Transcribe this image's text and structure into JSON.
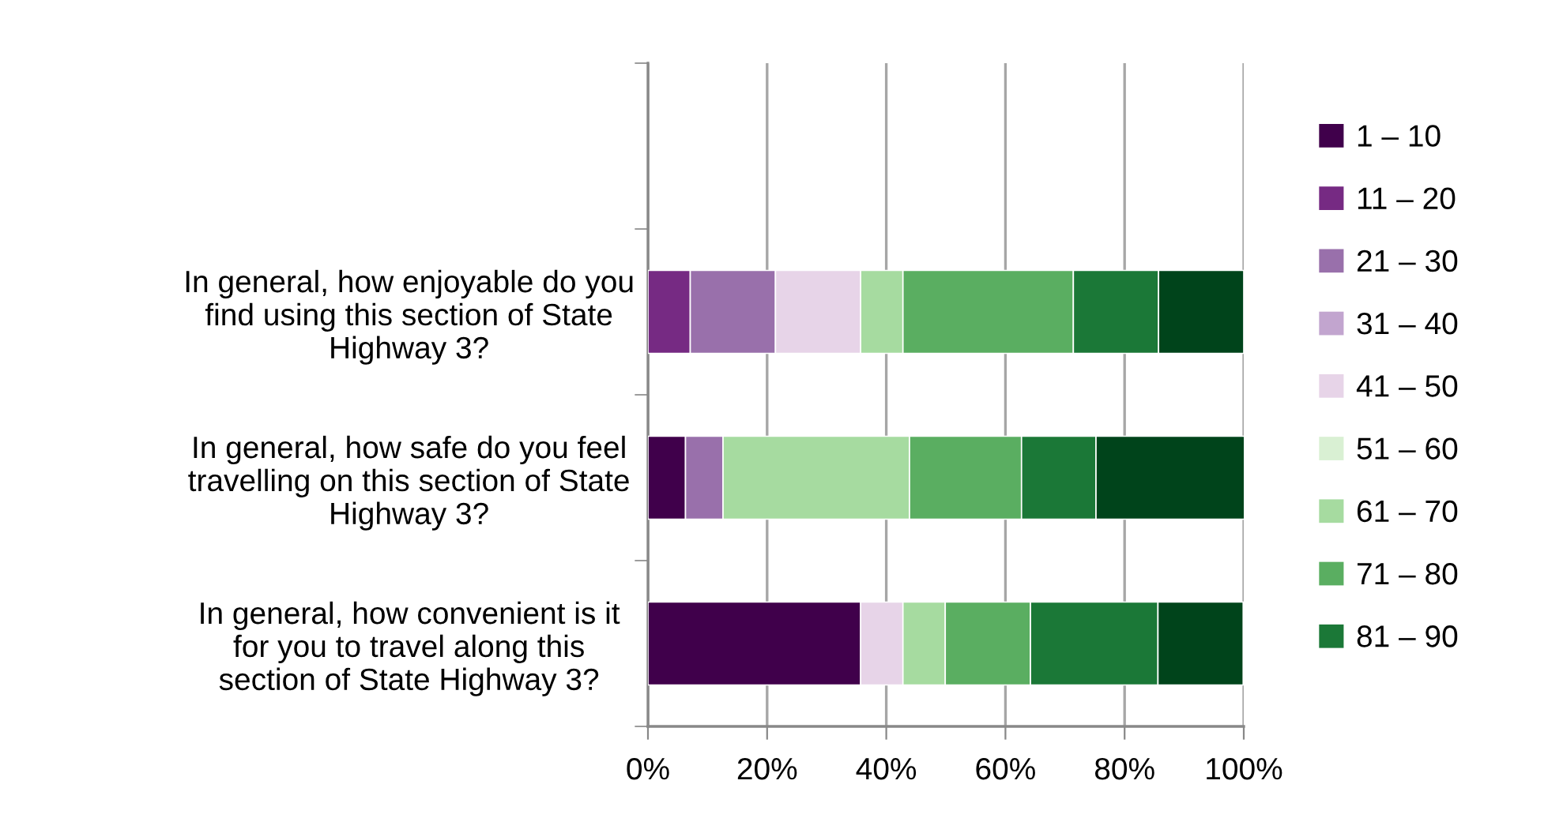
{
  "chart_data": {
    "type": "bar",
    "orientation": "horizontal",
    "stacked": true,
    "categories": [
      null,
      "In general, how enjoyable do you\nfind using this section of State\nHighway 3?",
      "In general, how safe do you feel\ntravelling on this section of State\nHighway 3?",
      "In general, how convenient is it\nfor you to travel along this\nsection of State Highway 3?"
    ],
    "series": [
      {
        "name": "1 – 10",
        "color": "#40004b",
        "values": [
          null,
          null,
          6.3,
          35.7
        ]
      },
      {
        "name": "11 – 20",
        "color": "#762a83",
        "values": [
          null,
          7.1,
          null,
          null
        ]
      },
      {
        "name": "21 – 30",
        "color": "#9970ab",
        "values": [
          null,
          14.3,
          6.3,
          null
        ]
      },
      {
        "name": "31 – 40",
        "color": "#c2a5cf",
        "values": [
          null,
          null,
          null,
          null
        ]
      },
      {
        "name": "41 – 50",
        "color": "#e7d4e8",
        "values": [
          null,
          14.3,
          null,
          7.1
        ]
      },
      {
        "name": "51 – 60",
        "color": "#d9f0d3",
        "values": [
          null,
          null,
          null,
          null
        ]
      },
      {
        "name": "61 – 70",
        "color": "#a6dba0",
        "values": [
          null,
          7.1,
          31.3,
          7.1
        ]
      },
      {
        "name": "71 – 80",
        "color": "#5aae61",
        "values": [
          null,
          28.6,
          18.8,
          14.3
        ]
      },
      {
        "name": "81 – 90",
        "color": "#1b7837",
        "values": [
          null,
          14.3,
          12.5,
          21.4
        ]
      },
      {
        "color": "#00441b",
        "values": [
          null,
          14.3,
          25.0,
          14.3
        ]
      }
    ],
    "xlim": [
      0,
      100
    ],
    "xticks": [
      {
        "value": 0,
        "label": "0%"
      },
      {
        "value": 20,
        "label": "20%"
      },
      {
        "value": 40,
        "label": "40%"
      },
      {
        "value": 60,
        "label": "60%"
      },
      {
        "value": 80,
        "label": "80%"
      },
      {
        "value": 100,
        "label": "100%"
      }
    ],
    "grid": "x",
    "legend": "right"
  }
}
